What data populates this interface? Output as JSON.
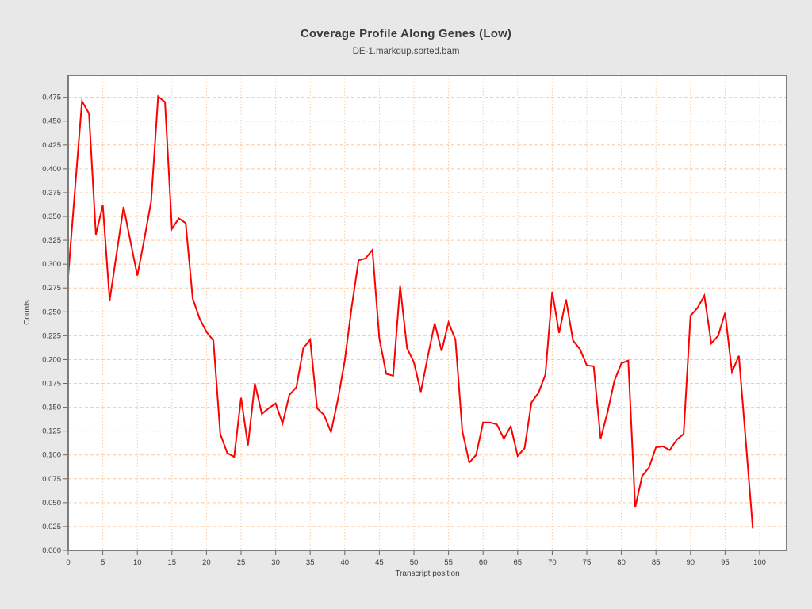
{
  "header": {
    "title": "Coverage Profile Along Genes (Low)",
    "subtitle": "DE-1.markdup.sorted.bam"
  },
  "chart_data": {
    "type": "line",
    "title": "Coverage Profile Along Genes (Low)",
    "subtitle": "DE-1.markdup.sorted.bam",
    "xlabel": "Transcript position",
    "ylabel": "Counts",
    "xlim": [
      0,
      103.9
    ],
    "ylim": [
      0,
      0.498
    ],
    "grid": true,
    "legend_position": "none",
    "x_tick_labels": [
      "0",
      "5",
      "10",
      "15",
      "20",
      "25",
      "30",
      "35",
      "40",
      "45",
      "50",
      "55",
      "60",
      "65",
      "70",
      "75",
      "80",
      "85",
      "90",
      "95",
      "100"
    ],
    "y_tick_labels": [
      "0.000",
      "0.025",
      "0.050",
      "0.075",
      "0.100",
      "0.125",
      "0.150",
      "0.175",
      "0.200",
      "0.225",
      "0.250",
      "0.275",
      "0.300",
      "0.325",
      "0.350",
      "0.375",
      "0.400",
      "0.425",
      "0.450",
      "0.475"
    ],
    "x": [
      0,
      1,
      2,
      3,
      4,
      5,
      6,
      7,
      8,
      9,
      10,
      11,
      12,
      13,
      14,
      15,
      16,
      17,
      18,
      19,
      20,
      21,
      22,
      23,
      24,
      25,
      26,
      27,
      28,
      29,
      30,
      31,
      32,
      33,
      34,
      35,
      36,
      37,
      38,
      39,
      40,
      41,
      42,
      43,
      44,
      45,
      46,
      47,
      48,
      49,
      50,
      51,
      52,
      53,
      54,
      55,
      56,
      57,
      58,
      59,
      60,
      61,
      62,
      63,
      64,
      65,
      66,
      67,
      68,
      69,
      70,
      71,
      72,
      73,
      74,
      75,
      76,
      77,
      78,
      79,
      80,
      81,
      82,
      83,
      84,
      85,
      86,
      87,
      88,
      89,
      90,
      91,
      92,
      93,
      94,
      95,
      96,
      97,
      98,
      99
    ],
    "series": [
      {
        "name": "DE-1.markdup.sorted.bam coverage",
        "color": "#ff0000",
        "values": [
          0.288,
          0.38,
          0.471,
          0.458,
          0.331,
          0.362,
          0.262,
          0.311,
          0.36,
          0.324,
          0.288,
          0.326,
          0.366,
          0.476,
          0.47,
          0.337,
          0.348,
          0.343,
          0.264,
          0.243,
          0.229,
          0.22,
          0.122,
          0.102,
          0.098,
          0.16,
          0.11,
          0.175,
          0.143,
          0.149,
          0.154,
          0.133,
          0.163,
          0.171,
          0.212,
          0.221,
          0.149,
          0.142,
          0.124,
          0.158,
          0.199,
          0.255,
          0.304,
          0.306,
          0.315,
          0.222,
          0.185,
          0.183,
          0.277,
          0.212,
          0.197,
          0.166,
          0.203,
          0.238,
          0.209,
          0.239,
          0.221,
          0.125,
          0.092,
          0.1,
          0.134,
          0.134,
          0.132,
          0.117,
          0.13,
          0.099,
          0.107,
          0.155,
          0.165,
          0.184,
          0.271,
          0.228,
          0.263,
          0.22,
          0.211,
          0.194,
          0.193,
          0.117,
          0.145,
          0.178,
          0.196,
          0.199,
          0.045,
          0.078,
          0.087,
          0.108,
          0.109,
          0.105,
          0.116,
          0.122,
          0.246,
          0.254,
          0.267,
          0.217,
          0.225,
          0.249,
          0.187,
          0.204,
          0.114,
          0.023
        ]
      }
    ],
    "colors": {
      "line": "#ff0000",
      "grid": "#f8caa2",
      "plot_background": "#ffffff",
      "outer_background": "#e8e8e8",
      "frame": "#7d7d7d",
      "tick": "#666666",
      "text": "#3d3d3d"
    }
  }
}
